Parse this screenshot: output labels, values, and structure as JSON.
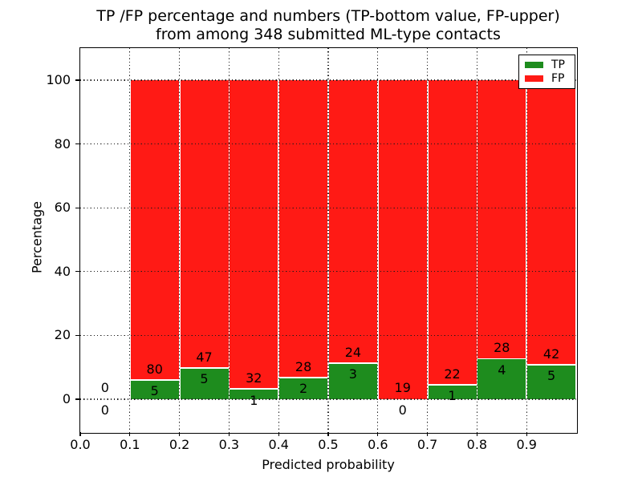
{
  "title": {
    "line1": "TP /FP percentage and numbers (TP-bottom value, FP-upper)",
    "line2": "from among 348 submitted ML-type contacts"
  },
  "axes": {
    "xlabel": "Predicted probability",
    "ylabel": "Percentage",
    "x_tick_labels": [
      "0.0",
      "0.1",
      "0.2",
      "0.3",
      "0.4",
      "0.5",
      "0.6",
      "0.7",
      "0.8",
      "0.9"
    ],
    "x_tick_values": [
      0.0,
      0.1,
      0.2,
      0.3,
      0.4,
      0.5,
      0.6,
      0.7,
      0.8,
      0.9
    ],
    "y_tick_labels": [
      "0",
      "20",
      "40",
      "60",
      "80",
      "100"
    ],
    "y_tick_values": [
      0,
      20,
      40,
      60,
      80,
      100
    ],
    "v_gridlines": [
      0.1,
      0.2,
      0.3,
      0.4,
      0.5,
      0.6,
      0.7,
      0.8,
      0.9
    ]
  },
  "legend": {
    "items": [
      {
        "label": "TP",
        "color": "#1e8c1e"
      },
      {
        "label": "FP",
        "color": "#ff1a15"
      }
    ]
  },
  "colors": {
    "tp": "#1e8c1e",
    "fp": "#ff1a15",
    "grid": "#1a1a1a",
    "bar_edge": "#ffffff"
  },
  "chart_data": {
    "type": "bar",
    "stacked": true,
    "normalized_to": 100,
    "title": "TP /FP percentage and numbers (TP-bottom value, FP-upper) from among 348 submitted ML-type contacts",
    "xlabel": "Predicted probability",
    "ylabel": "Percentage",
    "xlim": [
      0.0,
      1.0
    ],
    "ylim": [
      -10.3,
      110.1
    ],
    "grid": true,
    "legend_position": "upper right",
    "total_contacts": 348,
    "bin_width": 0.1,
    "bins": [
      {
        "range": [
          0.0,
          0.1
        ],
        "tp": 0,
        "fp": 0
      },
      {
        "range": [
          0.1,
          0.2
        ],
        "tp": 5,
        "fp": 80
      },
      {
        "range": [
          0.2,
          0.3
        ],
        "tp": 5,
        "fp": 47
      },
      {
        "range": [
          0.3,
          0.4
        ],
        "tp": 1,
        "fp": 32
      },
      {
        "range": [
          0.4,
          0.5
        ],
        "tp": 2,
        "fp": 28
      },
      {
        "range": [
          0.5,
          0.6
        ],
        "tp": 3,
        "fp": 24
      },
      {
        "range": [
          0.6,
          0.7
        ],
        "tp": 0,
        "fp": 19
      },
      {
        "range": [
          0.7,
          0.8
        ],
        "tp": 1,
        "fp": 22
      },
      {
        "range": [
          0.8,
          0.9
        ],
        "tp": 4,
        "fp": 28
      },
      {
        "range": [
          0.9,
          1.0
        ],
        "tp": 5,
        "fp": 42
      }
    ],
    "series": [
      {
        "name": "TP",
        "color": "#1e8c1e",
        "counts": [
          0,
          5,
          5,
          1,
          2,
          3,
          0,
          1,
          4,
          5
        ]
      },
      {
        "name": "FP",
        "color": "#ff1a15",
        "counts": [
          0,
          80,
          47,
          32,
          28,
          24,
          19,
          22,
          28,
          42
        ]
      }
    ]
  }
}
